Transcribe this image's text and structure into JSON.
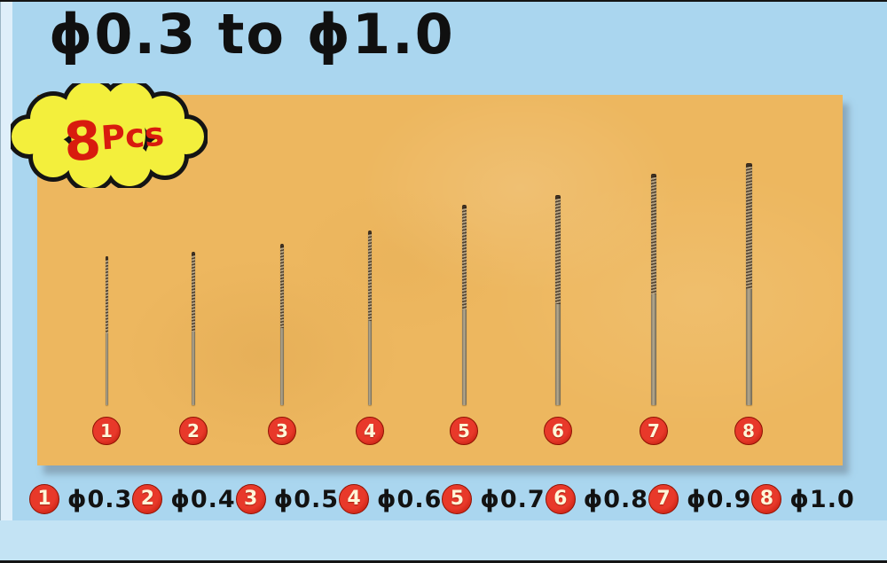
{
  "title": "ϕ0.3 to ϕ1.0",
  "badge": {
    "count": "8",
    "unit": "Pcs"
  },
  "bits": [
    {
      "number": "1",
      "label": "ϕ0.3",
      "diameter_mm": 0.3
    },
    {
      "number": "2",
      "label": "ϕ0.4",
      "diameter_mm": 0.4
    },
    {
      "number": "3",
      "label": "ϕ0.5",
      "diameter_mm": 0.5
    },
    {
      "number": "4",
      "label": "ϕ0.6",
      "diameter_mm": 0.6
    },
    {
      "number": "5",
      "label": "ϕ0.7",
      "diameter_mm": 0.7
    },
    {
      "number": "6",
      "label": "ϕ0.8",
      "diameter_mm": 0.8
    },
    {
      "number": "7",
      "label": "ϕ0.9",
      "diameter_mm": 0.9
    },
    {
      "number": "8",
      "label": "ϕ1.0",
      "diameter_mm": 1.0
    }
  ],
  "colors": {
    "background": "#aad6ef",
    "panel": "#edb75f",
    "badge_fill": "#f3ef3c",
    "badge_outline": "#141414",
    "badge_text": "#d81b0e",
    "marker_red": "#cf1d10",
    "marker_number": "#fff6d8",
    "title_text": "#101010"
  }
}
